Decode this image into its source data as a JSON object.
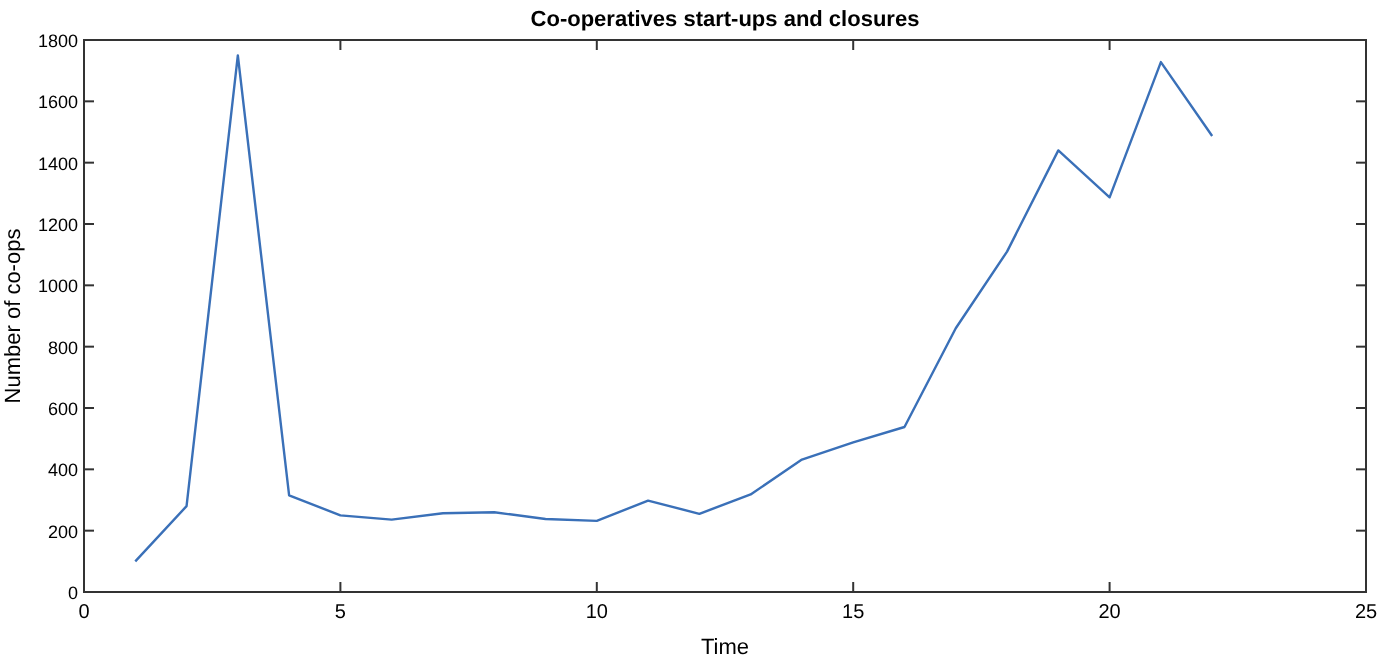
{
  "chart_data": {
    "type": "line",
    "title": "Co-operatives start-ups and closures",
    "xlabel": "Time",
    "ylabel": "Number of co-ops",
    "x": [
      1,
      2,
      3,
      4,
      5,
      6,
      7,
      8,
      9,
      10,
      11,
      12,
      13,
      14,
      15,
      16,
      17,
      18,
      19,
      20,
      21,
      22
    ],
    "series": [
      {
        "color": "#3a70b8",
        "values": [
          100,
          280,
          1750,
          315,
          250,
          236,
          257,
          260,
          238,
          232,
          298,
          255,
          318,
          432,
          488,
          538,
          860,
          1110,
          1440,
          1287,
          1728,
          1487
        ]
      }
    ],
    "xlim": [
      0,
      25
    ],
    "xticks": [
      0,
      5,
      10,
      15,
      20,
      25
    ],
    "ylim": [
      0,
      1800
    ],
    "yticks": [
      0,
      200,
      400,
      600,
      800,
      1000,
      1200,
      1400,
      1600,
      1800
    ],
    "grid": false,
    "marker": "none",
    "line_style": "solid"
  }
}
